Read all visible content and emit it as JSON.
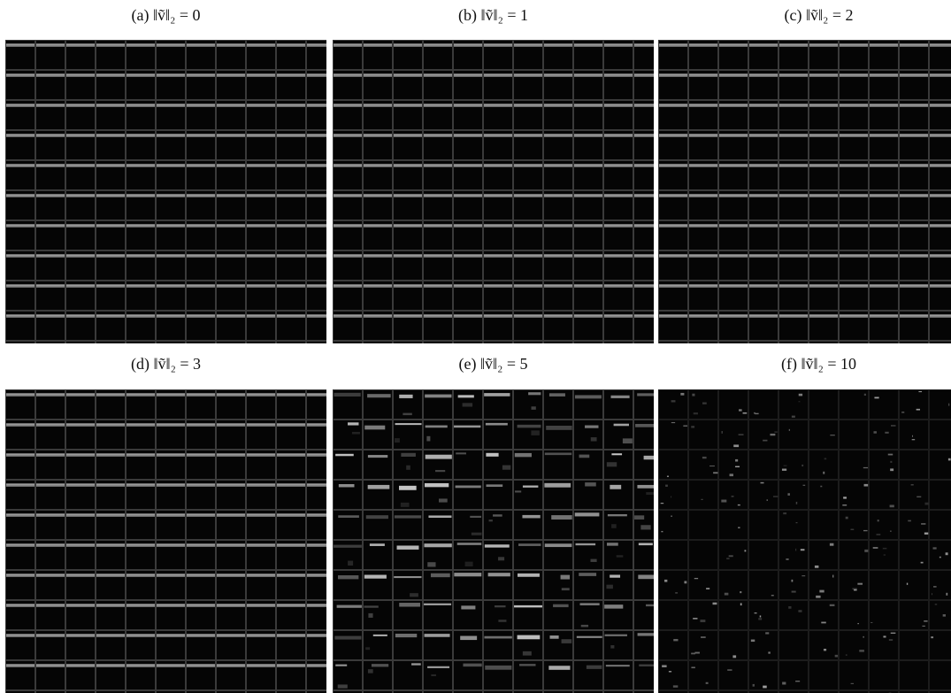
{
  "panels": [
    {
      "caption": "(a) ‖ṽ‖₂ = 0"
    },
    {
      "caption": "(b) ‖ṽ‖₂ = 1"
    },
    {
      "caption": "(c) ‖ṽ‖₂ = 2"
    },
    {
      "caption": "(d) ‖ṽ‖₂ = 3"
    },
    {
      "caption": "(e) ‖ṽ‖₂ = 5"
    },
    {
      "caption": "(f) ‖ṽ‖₂ = 10"
    }
  ]
}
